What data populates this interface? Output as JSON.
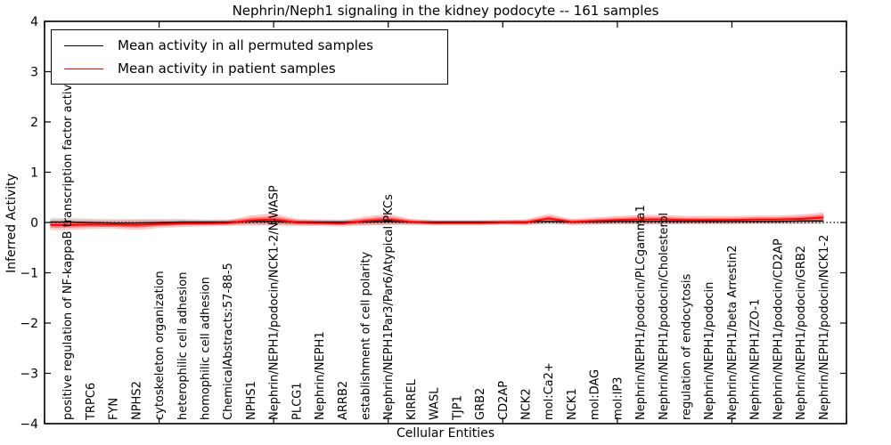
{
  "title_text": "Nephrin/Neph1 signaling in the kidney podocyte -- 161 samples",
  "colors": {
    "permuted_line": "#000000",
    "patient_line": "#ff0000",
    "patient_band": "rgba(255,0,0,0.22)",
    "patient_band_inner": "rgba(255,0,0,0.35)",
    "permuted_band": "rgba(120,120,120,0.25)",
    "axis": "#000000",
    "background": "#ffffff"
  },
  "chart_data": {
    "type": "line",
    "title": "Nephrin/Neph1 signaling in the kidney podocyte -- 161 samples",
    "xlabel": "Cellular Entities",
    "ylabel": "Inferred Activity",
    "ylim": [
      -4,
      4
    ],
    "yticks": [
      -4,
      -3,
      -2,
      -1,
      0,
      1,
      2,
      3,
      4
    ],
    "xlim": [
      0,
      35
    ],
    "xticks_major": [
      0,
      5,
      10,
      15,
      20,
      25,
      30,
      35
    ],
    "grid": false,
    "legend_position": "upper left",
    "reference_line": {
      "y": 0,
      "style": "dotted",
      "color": "#000000"
    },
    "categories": [
      "positive regulation of NF-kappaB transcription factor activity",
      "TRPC6",
      "FYN",
      "NPHS2",
      "cytoskeleton organization",
      "heterophilic cell adhesion",
      "homophilic cell adhesion",
      "ChemicalAbstracts:57-88-5",
      "NPHS1",
      "Nephrin/NEPH1/podocin/NCK1-2/N-WASP",
      "PLCG1",
      "Nephrin/NEPH1",
      "ARRB2",
      "establishment of cell polarity",
      "Nephrin/NEPH1Par3/Par6/Atypical PKCs",
      "KIRREL",
      "WASL",
      "TJP1",
      "GRB2",
      "CD2AP",
      "NCK2",
      "mol:Ca2+",
      "NCK1",
      "mol:DAG",
      "mol:IP3",
      "Nephrin/NEPH1/podocin/PLCgamma1",
      "Nephrin/NEPH1/podocin/Cholesterol",
      "regulation of endocytosis",
      "Nephrin/NEPH1/podocin",
      "Nephrin/NEPH1/beta Arrestin2",
      "Nephrin/NEPH1/ZO-1",
      "Nephrin/NEPH1/podocin/CD2AP",
      "Nephrin/NEPH1/podocin/GRB2",
      "Nephrin/NEPH1/podocin/NCK1-2"
    ],
    "series": [
      {
        "name": "Mean activity in all permuted samples",
        "color": "#000000",
        "values": [
          0.01,
          0.0,
          -0.01,
          -0.01,
          0.0,
          0.01,
          0.01,
          0.01,
          0.02,
          0.02,
          0.01,
          0.01,
          0.01,
          0.01,
          0.02,
          0.01,
          0.01,
          0.01,
          0.01,
          0.01,
          0.01,
          0.02,
          0.01,
          0.01,
          0.02,
          0.02,
          0.02,
          0.02,
          0.02,
          0.02,
          0.02,
          0.02,
          0.03,
          0.03
        ],
        "band_halfwidth": [
          0.08,
          0.08,
          0.08,
          0.08,
          0.07,
          0.06,
          0.05,
          0.05,
          0.06,
          0.07,
          0.05,
          0.05,
          0.05,
          0.06,
          0.06,
          0.05,
          0.04,
          0.04,
          0.04,
          0.04,
          0.05,
          0.06,
          0.05,
          0.05,
          0.05,
          0.06,
          0.06,
          0.05,
          0.05,
          0.05,
          0.05,
          0.05,
          0.06,
          0.06
        ]
      },
      {
        "name": "Mean activity in patient samples",
        "color": "#ff0000",
        "values": [
          -0.05,
          -0.04,
          -0.04,
          -0.05,
          -0.03,
          -0.02,
          -0.02,
          -0.01,
          0.04,
          0.06,
          0.0,
          -0.01,
          -0.02,
          0.03,
          0.06,
          0.01,
          -0.01,
          -0.01,
          -0.01,
          0.0,
          0.0,
          0.08,
          0.01,
          0.03,
          0.05,
          0.06,
          0.06,
          0.05,
          0.05,
          0.05,
          0.06,
          0.06,
          0.07,
          0.1
        ],
        "band_halfwidth": [
          0.1,
          0.09,
          0.08,
          0.1,
          0.08,
          0.07,
          0.06,
          0.06,
          0.1,
          0.12,
          0.07,
          0.06,
          0.06,
          0.09,
          0.11,
          0.06,
          0.05,
          0.05,
          0.05,
          0.05,
          0.06,
          0.09,
          0.06,
          0.07,
          0.08,
          0.09,
          0.09,
          0.08,
          0.08,
          0.08,
          0.08,
          0.08,
          0.09,
          0.1
        ]
      }
    ]
  },
  "legend": {
    "entries": [
      {
        "label": "Mean activity in all permuted samples",
        "color": "#000000"
      },
      {
        "label": "Mean activity in patient samples",
        "color": "#ff0000"
      }
    ]
  }
}
